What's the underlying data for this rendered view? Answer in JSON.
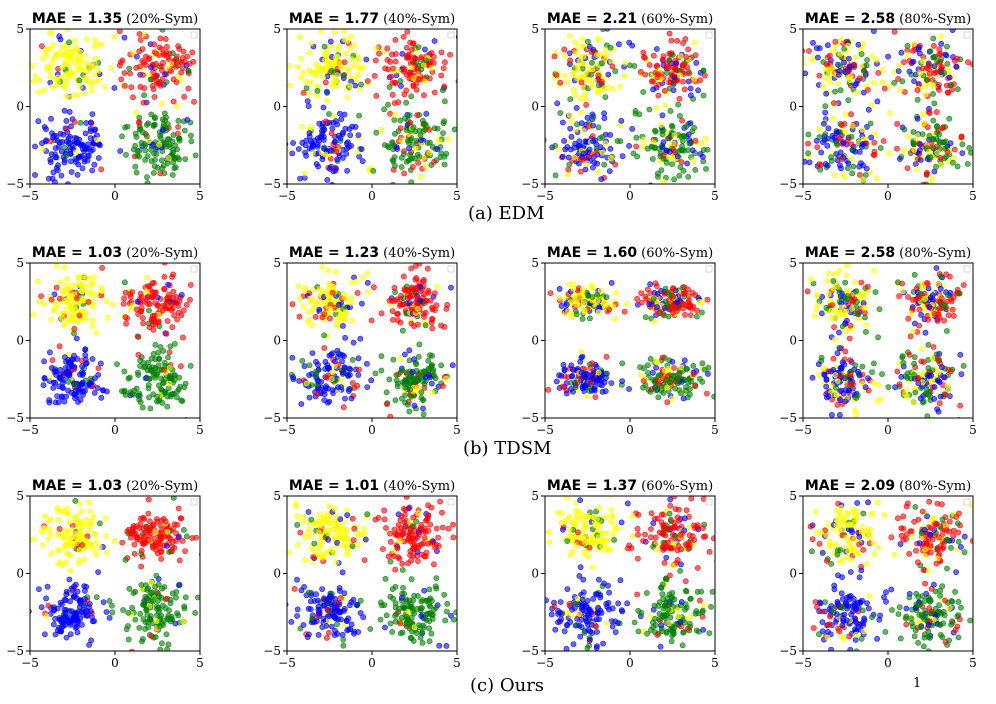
{
  "chart_data": {
    "type": "scatter",
    "axes": {
      "xlim": [
        -5,
        5
      ],
      "ylim": [
        -5,
        5
      ],
      "ticks": [
        "-5",
        "0",
        "5"
      ]
    },
    "colors": {
      "yellow": "#ffff00",
      "red": "#ff0000",
      "blue": "#0000ff",
      "green": "#008000"
    },
    "clusters": [
      {
        "name": "yellow",
        "center": [
          -2.5,
          2.5
        ]
      },
      {
        "name": "red",
        "center": [
          2.5,
          2.5
        ]
      },
      {
        "name": "blue",
        "center": [
          -2.5,
          -2.5
        ]
      },
      {
        "name": "green",
        "center": [
          2.5,
          -2.5
        ]
      }
    ],
    "rows": [
      {
        "caption": "(a) EDM",
        "panels": [
          {
            "mae_label": "MAE = 1.35",
            "condition": "(20%-Sym)",
            "mae": 1.35,
            "noise": 0.2
          },
          {
            "mae_label": "MAE = 1.77",
            "condition": "(40%-Sym)",
            "mae": 1.77,
            "noise": 0.4
          },
          {
            "mae_label": "MAE = 2.21",
            "condition": "(60%-Sym)",
            "mae": 2.21,
            "noise": 0.6
          },
          {
            "mae_label": "MAE = 2.58",
            "condition": "(80%-Sym)",
            "mae": 2.58,
            "noise": 0.8
          }
        ]
      },
      {
        "caption": "(b) TDSM",
        "panels": [
          {
            "mae_label": "MAE = 1.03",
            "condition": "(20%-Sym)",
            "mae": 1.03,
            "noise": 0.2
          },
          {
            "mae_label": "MAE = 1.23",
            "condition": "(40%-Sym)",
            "mae": 1.23,
            "noise": 0.4
          },
          {
            "mae_label": "MAE = 1.60",
            "condition": "(60%-Sym)",
            "mae": 1.6,
            "noise": 0.6
          },
          {
            "mae_label": "MAE = 2.58",
            "condition": "(80%-Sym)",
            "mae": 2.58,
            "noise": 0.8
          }
        ]
      },
      {
        "caption": "(c) Ours",
        "panels": [
          {
            "mae_label": "MAE = 1.03",
            "condition": "(20%-Sym)",
            "mae": 1.03,
            "noise": 0.2
          },
          {
            "mae_label": "MAE = 1.01",
            "condition": "(40%-Sym)",
            "mae": 1.01,
            "noise": 0.4
          },
          {
            "mae_label": "MAE = 1.37",
            "condition": "(60%-Sym)",
            "mae": 1.37,
            "noise": 0.6
          },
          {
            "mae_label": "MAE = 2.09",
            "condition": "(80%-Sym)",
            "mae": 2.09,
            "noise": 0.8
          }
        ]
      }
    ]
  },
  "page_number": "1"
}
